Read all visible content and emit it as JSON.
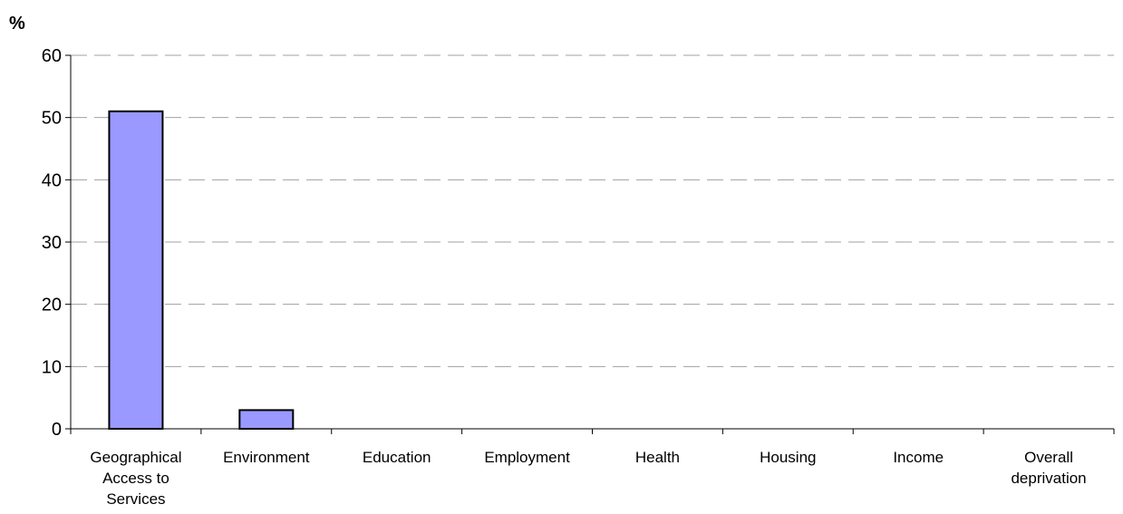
{
  "chart_data": {
    "type": "bar",
    "ylabel": "%",
    "xlabel": "",
    "title": "",
    "categories": [
      [
        "Geographical",
        "Access to",
        "Services"
      ],
      [
        "Environment"
      ],
      [
        "Education"
      ],
      [
        "Employment"
      ],
      [
        "Health"
      ],
      [
        "Housing"
      ],
      [
        "Income"
      ],
      [
        "Overall",
        "deprivation"
      ]
    ],
    "values": [
      51,
      3,
      0,
      0,
      0,
      0,
      0,
      0
    ],
    "ylim": [
      0,
      60
    ],
    "yticks": [
      0,
      10,
      20,
      30,
      40,
      50,
      60
    ],
    "grid": "horizontal-dashed",
    "legend": "none"
  },
  "colors": {
    "bar_fill": "#9999FF",
    "bar_stroke": "#000000",
    "grid": "#a0a0a0",
    "axis": "#000000"
  }
}
